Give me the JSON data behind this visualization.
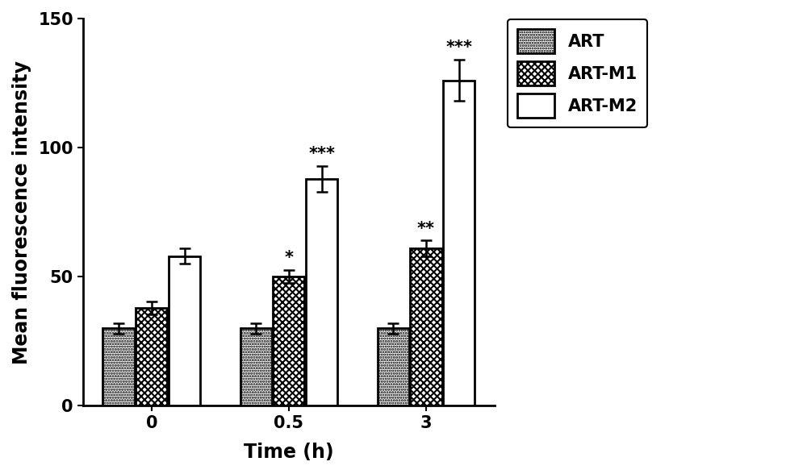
{
  "groups": [
    "0",
    "0.5",
    "3"
  ],
  "series": {
    "ART": {
      "values": [
        30,
        30,
        30
      ],
      "errors": [
        2.0,
        2.0,
        2.0
      ],
      "hatch": ".....",
      "facecolor": "#ffffff",
      "edgecolor": "#000000",
      "linewidth": 2.0
    },
    "ART-M1": {
      "values": [
        38,
        50,
        61
      ],
      "errors": [
        2.5,
        2.5,
        3.0
      ],
      "hatch": "XXXX",
      "facecolor": "#ffffff",
      "edgecolor": "#000000",
      "linewidth": 2.0
    },
    "ART-M2": {
      "values": [
        58,
        88,
        126
      ],
      "errors": [
        3.0,
        5.0,
        8.0
      ],
      "hatch": "====",
      "facecolor": "#ffffff",
      "edgecolor": "#000000",
      "linewidth": 2.0
    }
  },
  "annotations": {
    "ART-M1": [
      "",
      "*",
      "**"
    ],
    "ART-M2": [
      "",
      "***",
      "***"
    ]
  },
  "ylabel": "Mean fluorescence intensity",
  "xlabel": "Time (h)",
  "ylim": [
    0,
    150
  ],
  "yticks": [
    0,
    50,
    100,
    150
  ],
  "bar_width": 0.23,
  "background_color": "#ffffff",
  "label_fontsize": 17,
  "tick_fontsize": 15,
  "legend_fontsize": 15,
  "annotation_fontsize": 15,
  "capsize": 5
}
